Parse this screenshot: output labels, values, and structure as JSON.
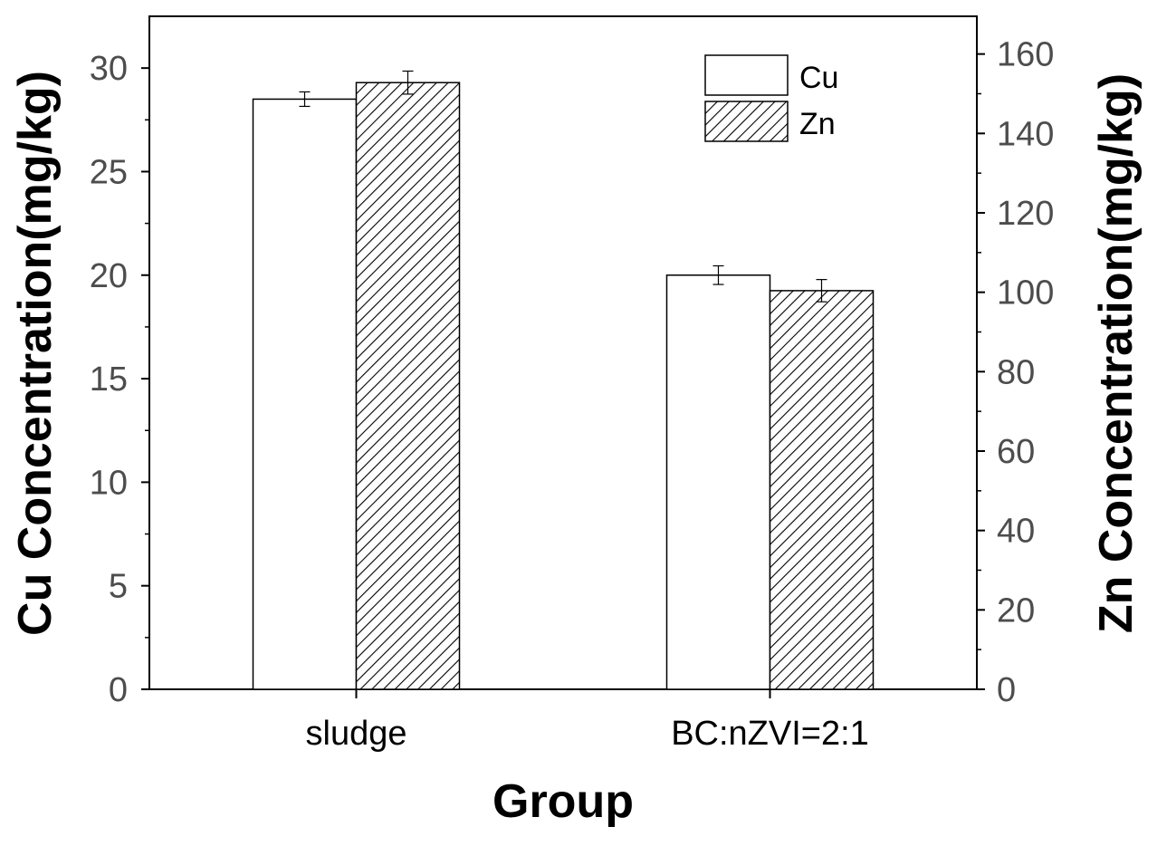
{
  "chart_data": {
    "type": "bar",
    "title": "",
    "xlabel": "Group",
    "ylabel_left": "Cu Concentration(mg/kg)",
    "ylabel_right": "Zn Concentration(mg/kg)",
    "categories": [
      "sludge",
      "BC:nZVI=2:1"
    ],
    "ylim_left": [
      0,
      32.5
    ],
    "ylim_right": [
      0,
      169.5
    ],
    "yticks_left": [
      0,
      5,
      10,
      15,
      20,
      25,
      30
    ],
    "yticks_right": [
      0,
      20,
      40,
      60,
      80,
      100,
      120,
      140,
      160
    ],
    "series": [
      {
        "name": "Cu",
        "axis": "left",
        "fill": "white",
        "values": [
          28.5,
          20.0
        ],
        "errors": [
          0.35,
          0.45
        ]
      },
      {
        "name": "Zn",
        "axis": "right",
        "fill": "diagonal-hatch",
        "values": [
          152.8,
          100.4
        ],
        "errors": [
          2.9,
          2.8
        ]
      }
    ],
    "legend_position": "top-right",
    "grid": false,
    "colors": {
      "stroke": "#000000",
      "hatch": "#000000",
      "tick_text": "#4d4d4d"
    }
  }
}
